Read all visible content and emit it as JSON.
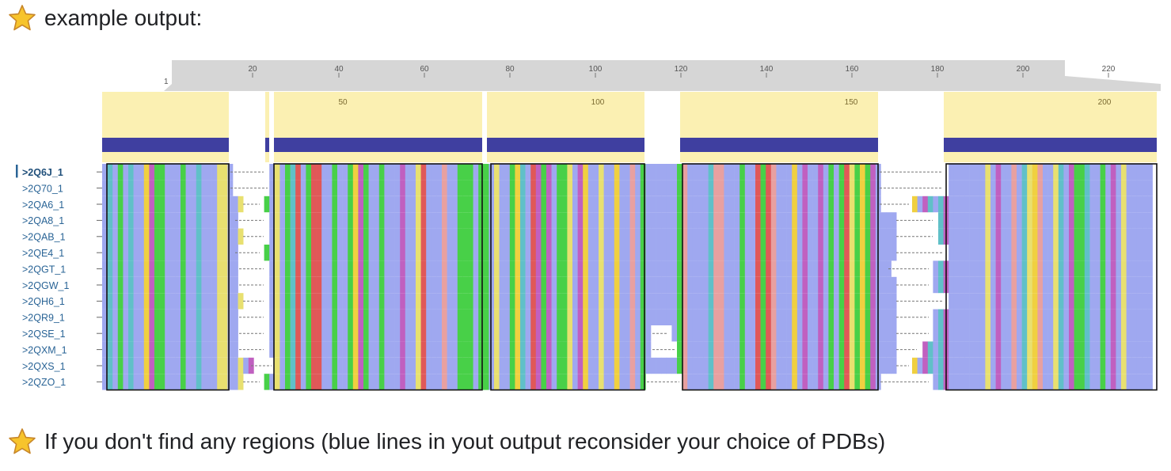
{
  "headings": {
    "top": "example output:",
    "bottom": "If you don't find any regions (blue lines in yout output reconsider your choice of PDBs)"
  },
  "icons": {
    "heading_icon": "star-icon"
  },
  "ruler": {
    "start_label": "1",
    "ticks": [
      "20",
      "40",
      "60",
      "80",
      "100",
      "120",
      "140",
      "160",
      "180",
      "200",
      "220"
    ]
  },
  "regions": {
    "numbers": [
      "50",
      "100",
      "150",
      "200"
    ]
  },
  "sequences": [
    ">2Q6J_1",
    ">2Q70_1",
    ">2QA6_1",
    ">2QA8_1",
    ">2QAB_1",
    ">2QE4_1",
    ">2QGT_1",
    ">2QGW_1",
    ">2QH6_1",
    ">2QR9_1",
    ">2QSE_1",
    ">2QXM_1",
    ">2QXS_1",
    ">2QZO_1"
  ],
  "active_sequence": ">2Q6J_1",
  "colors": {
    "ruler_band": "#d6d6d6",
    "region_fill": "#fbf0b2",
    "region_bar": "#3f3fa0",
    "hydrophobic": "#9fa8f0",
    "positive": "#e05858",
    "negative": "#c060c0",
    "polar": "#48d048",
    "cysteine": "#e8a0a0",
    "glycine": "#f0d040",
    "proline": "#e8e070",
    "aromatic": "#60c0c8",
    "label_blue": "#2a6496"
  }
}
